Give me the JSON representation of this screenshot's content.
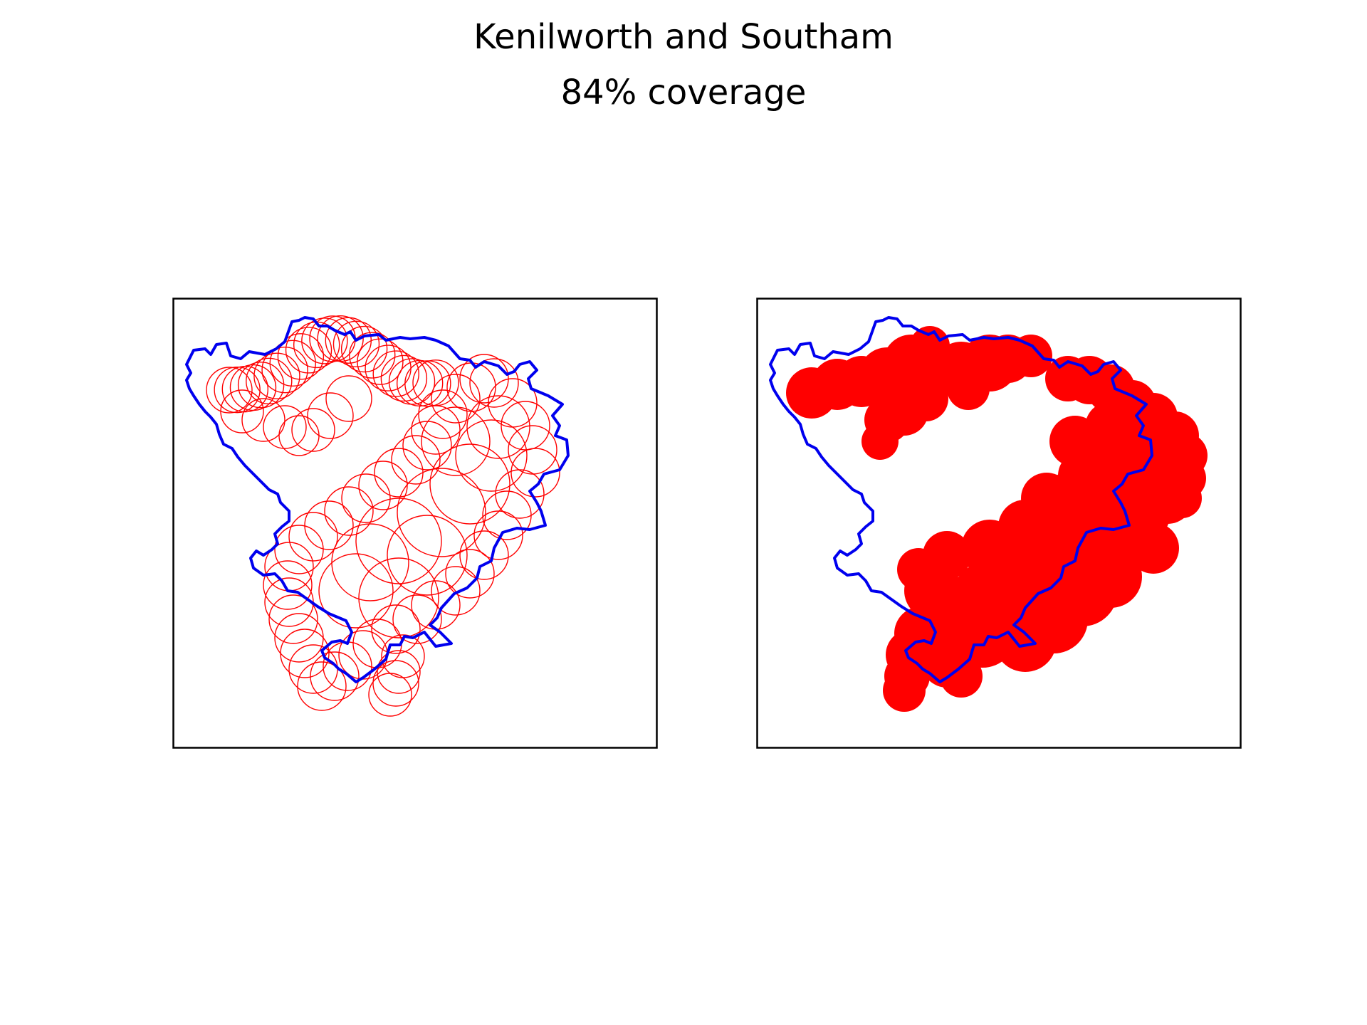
{
  "title": "Kenilworth and Southam",
  "subtitle": "84% coverage",
  "colors": {
    "boundary": "#0000ee",
    "coverage": "#ff0000",
    "frame": "#000000",
    "background": "#ffffff"
  },
  "panels": [
    {
      "name": "coverage-circles-panel",
      "style": "outline"
    },
    {
      "name": "coverage-fill-panel",
      "style": "filled"
    }
  ]
}
